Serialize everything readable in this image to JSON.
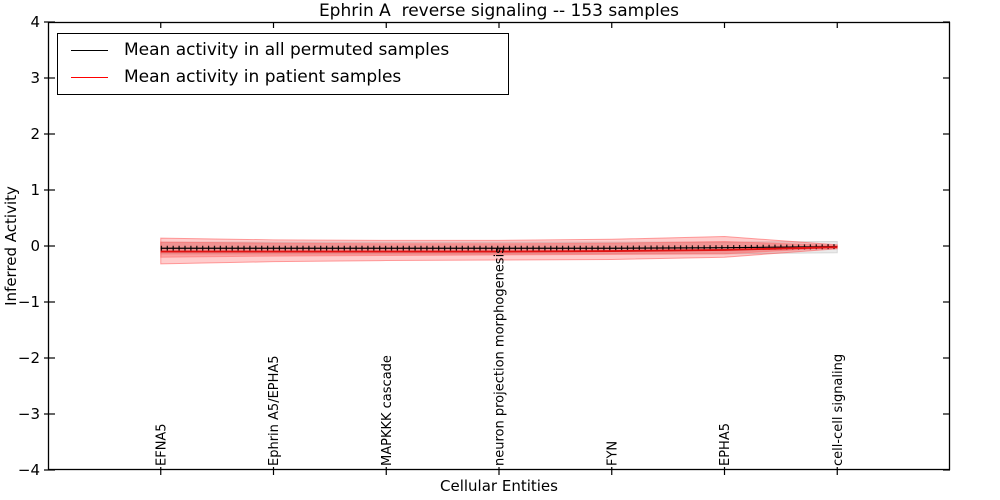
{
  "title": "Ephrin A  reverse signaling -- 153 samples",
  "legend": {
    "items": [
      {
        "label": "Mean activity in all permuted samples",
        "color": "#000000"
      },
      {
        "label": "Mean activity in patient samples",
        "color": "#ff0000"
      }
    ]
  },
  "colors": {
    "patient_line": "#e01212",
    "permuted_line": "#000000",
    "patient_band_fill": "#ff0000",
    "permuted_band_fill": "#d9d9d9",
    "axis": "#000000",
    "background": "#ffffff"
  },
  "chart_data": {
    "type": "line",
    "title": "Ephrin A  reverse signaling -- 153 samples",
    "xlabel": "Cellular Entities",
    "ylabel": "Inferred Activity",
    "ylim": [
      -4,
      4
    ],
    "yticks": [
      4,
      3,
      2,
      1,
      0,
      -1,
      -2,
      -3,
      -4
    ],
    "ytick_labels": [
      "4",
      "3",
      "2",
      "1",
      "0",
      "−1",
      "−2",
      "−3",
      "−4"
    ],
    "grid": false,
    "legend_position": "upper left",
    "categories": [
      "EFNA5",
      "Ephrin A5/EPHA5",
      "MAPKKK cascade",
      "neuron projection morphogenesis",
      "FYN",
      "EPHA5",
      "cell-cell signaling"
    ],
    "series": [
      {
        "name": "Mean activity in all permuted samples",
        "slug": "permuted-mean-line",
        "color": "#000000",
        "width": 1.2,
        "tick_markers": true,
        "values": [
          -0.04,
          -0.04,
          -0.04,
          -0.04,
          -0.04,
          -0.03,
          -0.01
        ]
      },
      {
        "name": "Mean activity in patient samples",
        "slug": "patient-mean-line",
        "color": "#e01212",
        "width": 1.9,
        "tick_markers": false,
        "values": [
          -0.1,
          -0.1,
          -0.1,
          -0.1,
          -0.09,
          -0.07,
          -0.02
        ]
      }
    ],
    "bands": [
      {
        "name": "permuted-std-band",
        "fill": "#d9d9d9",
        "fill_opacity": 0.55,
        "edge": "#c0c0c0",
        "upper": [
          0.07,
          0.07,
          0.07,
          0.07,
          0.07,
          0.07,
          0.08
        ],
        "lower": [
          -0.14,
          -0.14,
          -0.14,
          -0.14,
          -0.14,
          -0.14,
          -0.12
        ]
      },
      {
        "name": "patient-std-outer-band",
        "fill": "#ff0000",
        "fill_opacity": 0.2,
        "edge": "#ff5555",
        "upper": [
          0.14,
          0.11,
          0.1,
          0.1,
          0.12,
          0.17,
          0.02
        ],
        "lower": [
          -0.32,
          -0.28,
          -0.26,
          -0.25,
          -0.24,
          -0.2,
          -0.05
        ]
      },
      {
        "name": "patient-std-inner-band",
        "fill": "#ff0000",
        "fill_opacity": 0.22,
        "edge": "#ff7070",
        "upper": [
          0.07,
          0.05,
          0.04,
          0.04,
          0.05,
          0.08,
          0.01
        ],
        "lower": [
          -0.2,
          -0.18,
          -0.17,
          -0.16,
          -0.15,
          -0.14,
          -0.03
        ]
      }
    ]
  }
}
